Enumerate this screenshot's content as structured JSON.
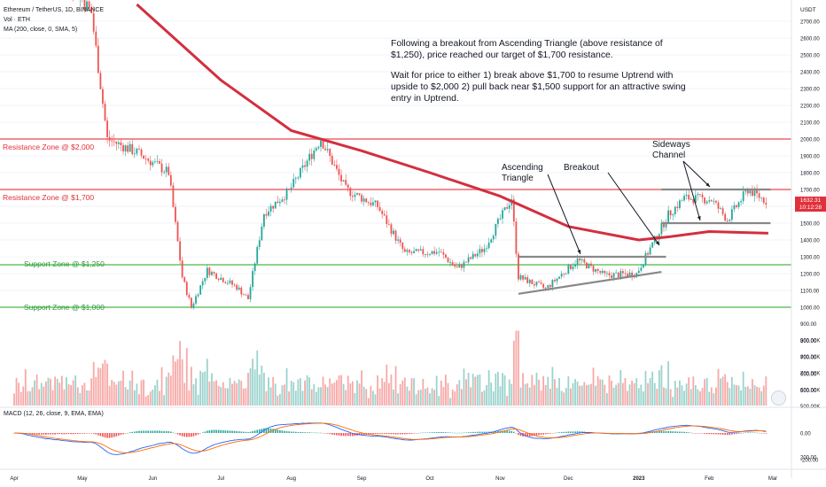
{
  "header": {
    "symbol_line": "Ethereum / TetherUS, 1D, BINANCE",
    "vol_line": "Vol · ETH",
    "ma_line": "MA (200, close, 0, SMA, 5)",
    "macd_line": "MACD (12, 26, close, 9, EMA, EMA)",
    "currency": "USDT"
  },
  "commentary": {
    "para1": "Following a breakout from Ascending Triangle (above resistance of $1,250), price reached our target of $1,700 resistance.",
    "para2": "Wait for price to either 1) break above $1,700 to resume Uptrend with upside to $2,000 2) pull back near $1,500 support for an attractive swing entry in Uptrend."
  },
  "zones": {
    "resistance_2000": "Resistance Zone @ $2,000",
    "resistance_1700": "Resistance Zone @ $1,700",
    "support_1250": "Support Zone @ $1,250",
    "support_1000": "Support Zone @ $1,000"
  },
  "annotations": {
    "ascending_1": "Ascending",
    "ascending_2": "Triangle",
    "breakout": "Breakout",
    "sideways_1": "Sideways",
    "sideways_2": "Channel"
  },
  "price_tag": {
    "price": "1632.31",
    "countdown": "10:12:28"
  },
  "colors": {
    "resistance": "#f28b94",
    "support": "#8fd18f",
    "ma": "#d32f3f",
    "up": "#26a69a",
    "down": "#ef5350",
    "macd_line": "#2962ff",
    "signal_line": "#ff6d00",
    "trendline": "#888888"
  },
  "chart_data": {
    "type": "candlestick",
    "x_axis_labels": [
      "Apr",
      "May",
      "Jun",
      "Jul",
      "Aug",
      "Sep",
      "Oct",
      "Nov",
      "Dec",
      "2023",
      "Feb",
      "Mar"
    ],
    "y_axis_labels": [
      "2700.00",
      "2600.00",
      "2500.00",
      "2400.00",
      "2300.00",
      "2200.00",
      "2100.00",
      "2000.00",
      "1900.00",
      "1800.00",
      "1700.00",
      "1600.00",
      "1500.00",
      "1400.00",
      "1300.00",
      "1200.00",
      "1100.00",
      "1000.00",
      "900.00",
      "800.00",
      "700.00",
      "600.00",
      "500.00",
      "200.00"
    ],
    "volume_axis_labels": [
      "900.00K",
      "800.00K",
      "700.00K",
      "600.00K",
      "500.00K"
    ],
    "macd_axis_labels": [
      "0.00",
      "-200.00"
    ],
    "ylim": [
      200,
      2800
    ],
    "price_path": [
      {
        "date": "2022-04-01",
        "price": 3450
      },
      {
        "date": "2022-04-20",
        "price": 3050
      },
      {
        "date": "2022-05-05",
        "price": 2750
      },
      {
        "date": "2022-05-12",
        "price": 2000
      },
      {
        "date": "2022-05-25",
        "price": 1920
      },
      {
        "date": "2022-06-08",
        "price": 1800
      },
      {
        "date": "2022-06-14",
        "price": 1180
      },
      {
        "date": "2022-06-18",
        "price": 1000
      },
      {
        "date": "2022-06-25",
        "price": 1220
      },
      {
        "date": "2022-07-08",
        "price": 1120
      },
      {
        "date": "2022-07-13",
        "price": 1050
      },
      {
        "date": "2022-07-20",
        "price": 1560
      },
      {
        "date": "2022-07-31",
        "price": 1690
      },
      {
        "date": "2022-08-14",
        "price": 2000
      },
      {
        "date": "2022-08-25",
        "price": 1700
      },
      {
        "date": "2022-09-08",
        "price": 1600
      },
      {
        "date": "2022-09-20",
        "price": 1320
      },
      {
        "date": "2022-10-05",
        "price": 1330
      },
      {
        "date": "2022-10-13",
        "price": 1230
      },
      {
        "date": "2022-10-25",
        "price": 1350
      },
      {
        "date": "2022-11-06",
        "price": 1650
      },
      {
        "date": "2022-11-09",
        "price": 1180
      },
      {
        "date": "2022-11-21",
        "price": 1110
      },
      {
        "date": "2022-12-05",
        "price": 1280
      },
      {
        "date": "2022-12-17",
        "price": 1190
      },
      {
        "date": "2022-12-31",
        "price": 1200
      },
      {
        "date": "2023-01-14",
        "price": 1550
      },
      {
        "date": "2023-01-21",
        "price": 1650
      },
      {
        "date": "2023-02-02",
        "price": 1640
      },
      {
        "date": "2023-02-09",
        "price": 1520
      },
      {
        "date": "2023-02-18",
        "price": 1700
      },
      {
        "date": "2023-02-26",
        "price": 1632
      }
    ],
    "ma200_path": [
      {
        "date": "2022-05-25",
        "price": 2800
      },
      {
        "date": "2022-07-01",
        "price": 2350
      },
      {
        "date": "2022-08-01",
        "price": 2050
      },
      {
        "date": "2022-09-01",
        "price": 1930
      },
      {
        "date": "2022-10-01",
        "price": 1800
      },
      {
        "date": "2022-11-01",
        "price": 1660
      },
      {
        "date": "2022-12-01",
        "price": 1480
      },
      {
        "date": "2023-01-01",
        "price": 1400
      },
      {
        "date": "2023-01-15",
        "price": 1420
      },
      {
        "date": "2023-02-01",
        "price": 1450
      },
      {
        "date": "2023-02-27",
        "price": 1440
      }
    ],
    "horizontal_levels": [
      2000,
      1700,
      1250,
      1000
    ],
    "last_price": 1632.31
  }
}
